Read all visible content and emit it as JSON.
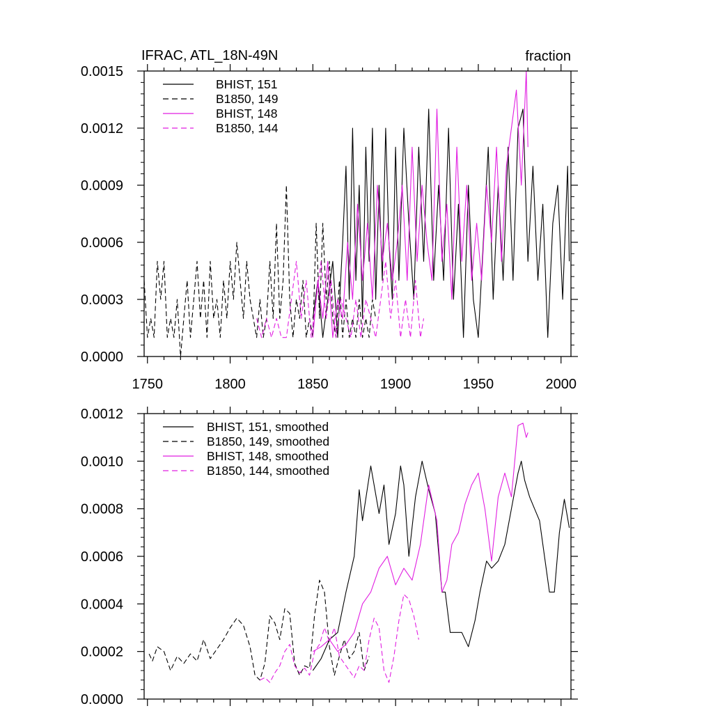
{
  "chart_data": [
    {
      "type": "line",
      "title": "IFRAC, ATL_18N-49N",
      "units": "fraction",
      "xlim": [
        1748,
        2006
      ],
      "ylim": [
        0.0,
        0.0015
      ],
      "x_ticks": [
        1750,
        1800,
        1850,
        1900,
        1950,
        2000
      ],
      "x_tick_labels": [
        "1750",
        "1800",
        "1850",
        "1900",
        "1950",
        "2000"
      ],
      "y_ticks": [
        0.0,
        0.0003,
        0.0006,
        0.0009,
        0.0012,
        0.0015
      ],
      "y_tick_labels": [
        "0.0000",
        "0.0003",
        "0.0006",
        "0.0009",
        "0.0012",
        "0.0015"
      ],
      "legend_position": "top-left",
      "series": [
        {
          "name": "BHIST, 151",
          "color": "#000000",
          "dash": "solid",
          "x": [
            1850,
            1853,
            1856,
            1859,
            1862,
            1865,
            1868,
            1870,
            1872,
            1874,
            1876,
            1878,
            1880,
            1882,
            1884,
            1886,
            1888,
            1890,
            1892,
            1894,
            1896,
            1898,
            1900,
            1902,
            1905,
            1908,
            1911,
            1914,
            1917,
            1920,
            1923,
            1926,
            1929,
            1932,
            1935,
            1938,
            1941,
            1944,
            1947,
            1950,
            1953,
            1956,
            1959,
            1962,
            1965,
            1968,
            1971,
            1974,
            1977,
            1980,
            1983,
            1986,
            1989,
            1992,
            1995,
            1998,
            2001,
            2004,
            2005
          ],
          "y": [
            0.0002,
            0.0004,
            0.0001,
            0.0003,
            0.0005,
            0.0001,
            0.0006,
            0.001,
            0.0003,
            0.0012,
            0.0004,
            0.0009,
            0.0002,
            0.0011,
            0.0005,
            0.0012,
            0.0003,
            0.0009,
            0.0004,
            0.0012,
            0.0006,
            0.0003,
            0.0011,
            0.0004,
            0.0012,
            0.0007,
            0.0003,
            0.0011,
            0.0005,
            0.0013,
            0.0004,
            0.0009,
            0.0004,
            0.0012,
            0.0003,
            0.0008,
            0.0001,
            0.0009,
            0.0003,
            0.0001,
            0.0006,
            0.0011,
            0.0003,
            0.0009,
            0.0004,
            0.0011,
            0.0004,
            0.0012,
            0.0013,
            0.0005,
            0.001,
            0.0004,
            0.0008,
            0.0001,
            0.0007,
            0.0009,
            0.0003,
            0.001,
            0.0005
          ]
        },
        {
          "name": "B1850, 149",
          "color": "#000000",
          "dash": "dashed",
          "x": [
            1748,
            1750,
            1752,
            1754,
            1756,
            1758,
            1760,
            1762,
            1764,
            1766,
            1768,
            1770,
            1772,
            1774,
            1776,
            1778,
            1780,
            1782,
            1784,
            1786,
            1788,
            1790,
            1792,
            1794,
            1796,
            1798,
            1800,
            1802,
            1804,
            1806,
            1808,
            1810,
            1812,
            1814,
            1816,
            1818,
            1820,
            1822,
            1824,
            1826,
            1828,
            1830,
            1832,
            1834,
            1836,
            1838,
            1840,
            1842,
            1844,
            1846,
            1848,
            1850,
            1852,
            1854,
            1856,
            1858,
            1860,
            1862,
            1864,
            1866,
            1868,
            1870,
            1872,
            1874,
            1876,
            1878,
            1880,
            1882,
            1884,
            1886,
            1888
          ],
          "y": [
            0.0004,
            0.0001,
            0.0002,
            0.0001,
            0.0005,
            0.0003,
            0.0005,
            0.0001,
            0.0002,
            0.0001,
            0.0003,
            0.0,
            0.0002,
            0.0004,
            0.0001,
            0.0003,
            0.0005,
            0.0002,
            0.0004,
            0.0001,
            0.0005,
            0.0002,
            0.0003,
            0.0001,
            0.0004,
            0.0002,
            0.0005,
            0.0003,
            0.0006,
            0.0004,
            0.0002,
            0.0005,
            0.0003,
            0.0002,
            0.0001,
            0.0003,
            0.0001,
            0.0002,
            0.0005,
            0.0002,
            0.0007,
            0.0002,
            0.0004,
            0.0009,
            0.0003,
            0.0001,
            0.0003,
            0.0002,
            0.0004,
            0.0001,
            0.0002,
            0.0001,
            0.0007,
            0.0002,
            0.0007,
            0.0003,
            0.0005,
            0.0002,
            0.0001,
            0.0004,
            0.0001,
            0.0003,
            0.0001,
            0.0002,
            0.0001,
            0.0003,
            0.0001,
            0.0002,
            0.0001,
            0.0003,
            0.0002
          ]
        },
        {
          "name": "BHIST, 148",
          "color": "#e11ee1",
          "dash": "solid",
          "x": [
            1850,
            1853,
            1856,
            1859,
            1862,
            1865,
            1868,
            1871,
            1874,
            1877,
            1880,
            1883,
            1886,
            1889,
            1892,
            1895,
            1898,
            1901,
            1904,
            1907,
            1910,
            1913,
            1916,
            1919,
            1922,
            1925,
            1928,
            1931,
            1934,
            1937,
            1940,
            1943,
            1946,
            1949,
            1952,
            1955,
            1958,
            1961,
            1964,
            1967,
            1970,
            1973,
            1976,
            1979,
            1980
          ],
          "y": [
            0.0001,
            0.0004,
            0.0002,
            0.0005,
            0.0001,
            0.0003,
            0.0002,
            0.0006,
            0.0003,
            0.0008,
            0.0004,
            0.0007,
            0.0003,
            0.0009,
            0.0005,
            0.0007,
            0.0004,
            0.0006,
            0.0009,
            0.0004,
            0.0011,
            0.0005,
            0.0009,
            0.0006,
            0.0004,
            0.0013,
            0.0005,
            0.0008,
            0.0003,
            0.0011,
            0.0005,
            0.0009,
            0.0004,
            0.0007,
            0.0004,
            0.0009,
            0.0006,
            0.0011,
            0.0005,
            0.001,
            0.0012,
            0.0014,
            0.0009,
            0.0015,
            0.0011
          ]
        },
        {
          "name": "B1850, 144",
          "color": "#e11ee1",
          "dash": "dashed",
          "x": [
            1816,
            1819,
            1822,
            1825,
            1828,
            1831,
            1834,
            1837,
            1840,
            1843,
            1846,
            1849,
            1852,
            1855,
            1858,
            1861,
            1864,
            1867,
            1870,
            1873,
            1876,
            1879,
            1882,
            1885,
            1888,
            1891,
            1894,
            1897,
            1900,
            1903,
            1906,
            1909,
            1912,
            1915,
            1917
          ],
          "y": [
            0.0002,
            0.0001,
            0.0002,
            0.0001,
            0.0002,
            0.0001,
            0.0001,
            0.0003,
            0.0005,
            0.0002,
            0.0004,
            0.0001,
            0.0003,
            0.0005,
            0.0002,
            0.0004,
            0.0001,
            0.0003,
            0.0002,
            0.0001,
            0.0003,
            0.0001,
            0.0003,
            0.0002,
            0.0001,
            0.0003,
            0.0005,
            0.0002,
            0.0004,
            0.0001,
            0.0003,
            0.0001,
            0.0004,
            0.0001,
            0.0002
          ]
        }
      ]
    },
    {
      "type": "line",
      "title": "",
      "units": "",
      "xlim": [
        1748,
        2006
      ],
      "ylim": [
        0.0,
        0.0012
      ],
      "x_ticks": [
        1750,
        1800,
        1850,
        1900,
        1950,
        2000
      ],
      "y_ticks": [
        0.0,
        0.0002,
        0.0004,
        0.0006,
        0.0008,
        0.001,
        0.0012
      ],
      "y_tick_labels": [
        "0.0000",
        "0.0002",
        "0.0004",
        "0.0006",
        "0.0008",
        "0.0010",
        "0.0012"
      ],
      "legend_position": "top-left",
      "series": [
        {
          "name": "BHIST, 151, smoothed",
          "color": "#000000",
          "dash": "solid",
          "x": [
            1850,
            1855,
            1860,
            1865,
            1870,
            1875,
            1878,
            1880,
            1885,
            1890,
            1893,
            1896,
            1900,
            1903,
            1905,
            1908,
            1912,
            1916,
            1920,
            1924,
            1928,
            1930,
            1933,
            1936,
            1940,
            1944,
            1948,
            1951,
            1955,
            1958,
            1962,
            1966,
            1970,
            1974,
            1976,
            1978,
            1981,
            1984,
            1987,
            1990,
            1993,
            1996,
            1999,
            2002,
            2005
          ],
          "y": [
            0.00012,
            0.00017,
            0.00025,
            0.00028,
            0.00045,
            0.0006,
            0.00088,
            0.00075,
            0.00098,
            0.00078,
            0.0009,
            0.00065,
            0.00078,
            0.00098,
            0.0009,
            0.0006,
            0.00085,
            0.001,
            0.00088,
            0.00078,
            0.00045,
            0.00045,
            0.00028,
            0.00028,
            0.00028,
            0.00022,
            0.00033,
            0.00045,
            0.00058,
            0.00055,
            0.00058,
            0.00065,
            0.0008,
            0.00095,
            0.001,
            0.00092,
            0.00085,
            0.0008,
            0.00075,
            0.0006,
            0.00045,
            0.00045,
            0.0007,
            0.00084,
            0.00072
          ]
        },
        {
          "name": "B1850, 149, smoothed",
          "color": "#000000",
          "dash": "dashed",
          "x": [
            1751,
            1753,
            1756,
            1760,
            1764,
            1768,
            1772,
            1776,
            1780,
            1784,
            1788,
            1792,
            1796,
            1800,
            1804,
            1808,
            1812,
            1815,
            1818,
            1821,
            1824,
            1827,
            1830,
            1833,
            1836,
            1839,
            1842,
            1845,
            1848,
            1851,
            1854,
            1857,
            1860,
            1863,
            1866,
            1869,
            1872,
            1875,
            1878,
            1881,
            1884
          ],
          "y": [
            0.00019,
            0.00016,
            0.00022,
            0.0002,
            0.00012,
            0.00018,
            0.00015,
            0.00019,
            0.00016,
            0.00025,
            0.00017,
            0.00021,
            0.00025,
            0.0003,
            0.00034,
            0.00031,
            0.00022,
            0.0001,
            8e-05,
            0.00015,
            0.00035,
            0.00032,
            0.00025,
            0.00038,
            0.00036,
            0.00015,
            0.0001,
            0.00014,
            0.00013,
            0.00035,
            0.0005,
            0.00045,
            0.00022,
            0.0001,
            0.00018,
            0.00025,
            0.00017,
            0.0002,
            0.00028,
            0.00012,
            0.00018
          ]
        },
        {
          "name": "BHIST, 148, smoothed",
          "color": "#e11ee1",
          "dash": "solid",
          "x": [
            1850,
            1855,
            1860,
            1865,
            1870,
            1875,
            1880,
            1885,
            1890,
            1895,
            1900,
            1905,
            1910,
            1915,
            1920,
            1925,
            1928,
            1931,
            1934,
            1938,
            1942,
            1946,
            1950,
            1954,
            1958,
            1962,
            1966,
            1970,
            1974,
            1977,
            1979,
            1980
          ],
          "y": [
            0.0002,
            0.00022,
            0.00025,
            0.0002,
            0.00023,
            0.00028,
            0.0004,
            0.00045,
            0.00055,
            0.0006,
            0.00048,
            0.00055,
            0.0005,
            0.00065,
            0.0009,
            0.00075,
            0.00045,
            0.0005,
            0.00065,
            0.0007,
            0.00082,
            0.0009,
            0.00095,
            0.0008,
            0.00058,
            0.00085,
            0.00095,
            0.00085,
            0.00115,
            0.00116,
            0.0011,
            0.00112
          ]
        },
        {
          "name": "B1850, 144, smoothed",
          "color": "#e11ee1",
          "dash": "dashed",
          "x": [
            1818,
            1821,
            1824,
            1827,
            1830,
            1833,
            1836,
            1839,
            1842,
            1845,
            1848,
            1851,
            1854,
            1857,
            1860,
            1863,
            1866,
            1869,
            1872,
            1875,
            1878,
            1881,
            1884,
            1887,
            1890,
            1893,
            1896,
            1899,
            1902,
            1905,
            1908,
            1911,
            1914
          ],
          "y": [
            8e-05,
            9e-05,
            7e-05,
            0.00011,
            0.00014,
            0.0002,
            0.00023,
            0.00014,
            0.00011,
            0.00013,
            0.0001,
            0.0002,
            0.00023,
            0.0003,
            0.00024,
            0.0003,
            0.00018,
            0.00015,
            0.00012,
            9e-05,
            0.00014,
            0.00012,
            0.00025,
            0.00034,
            0.0003,
            0.00012,
            7e-05,
            0.00018,
            0.00033,
            0.00044,
            0.00042,
            0.00035,
            0.00025
          ]
        }
      ]
    }
  ]
}
